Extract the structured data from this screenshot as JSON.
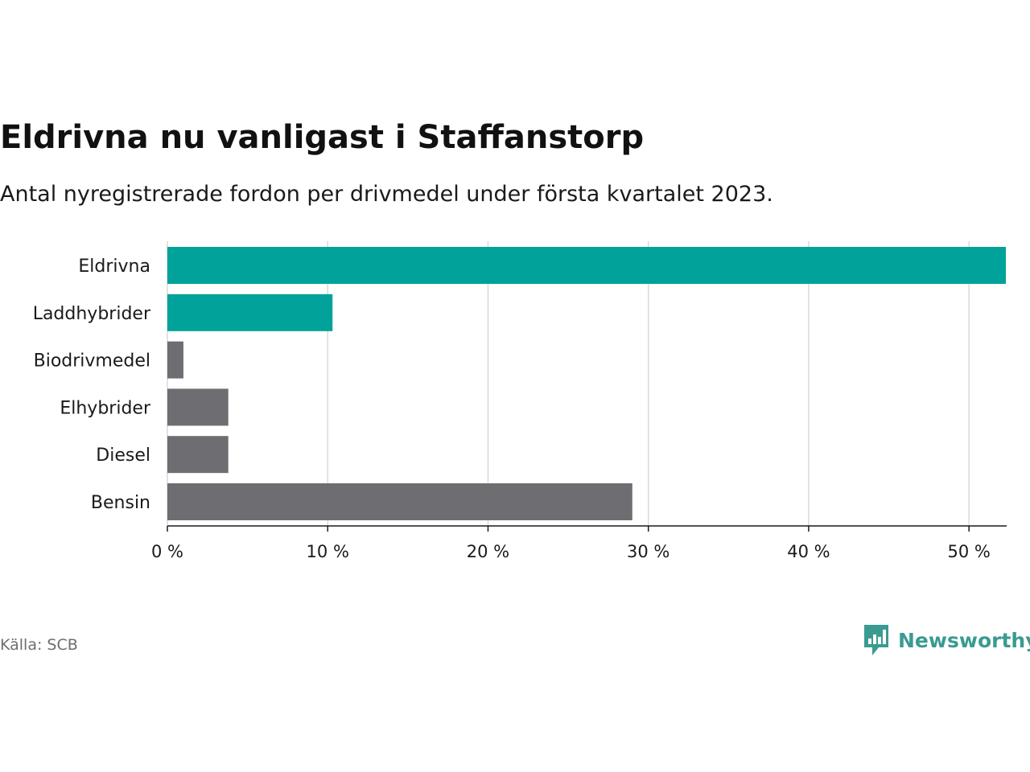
{
  "title": "Eldrivna nu vanligast i Staffanstorp",
  "subtitle": "Antal nyregistrerade fordon per drivmedel under första kvartalet 2023.",
  "source": "Källa: SCB",
  "brand": {
    "name": "Newsworthy",
    "icon": "newsworthy-logo-icon"
  },
  "colors": {
    "highlight": "#00a29a",
    "default": "#6e6d72",
    "grid": "#d9d9d9",
    "axis": "#1a1a1a",
    "brand": "#3a9b91"
  },
  "chart_data": {
    "type": "bar",
    "orientation": "horizontal",
    "categories": [
      "Eldrivna",
      "Laddhybrider",
      "Biodrivmedel",
      "Elhybrider",
      "Diesel",
      "Bensin"
    ],
    "values": [
      52.3,
      10.3,
      1.0,
      3.8,
      3.8,
      29.0
    ],
    "highlighted": [
      true,
      true,
      false,
      false,
      false,
      false
    ],
    "unit": "%",
    "xlim": [
      0,
      52.3
    ],
    "xticks": [
      0,
      10,
      20,
      30,
      40,
      50
    ],
    "xtick_labels": [
      "0 %",
      "10 %",
      "20 %",
      "30 %",
      "40 %",
      "50 %"
    ],
    "grid": true,
    "legend": "none"
  }
}
